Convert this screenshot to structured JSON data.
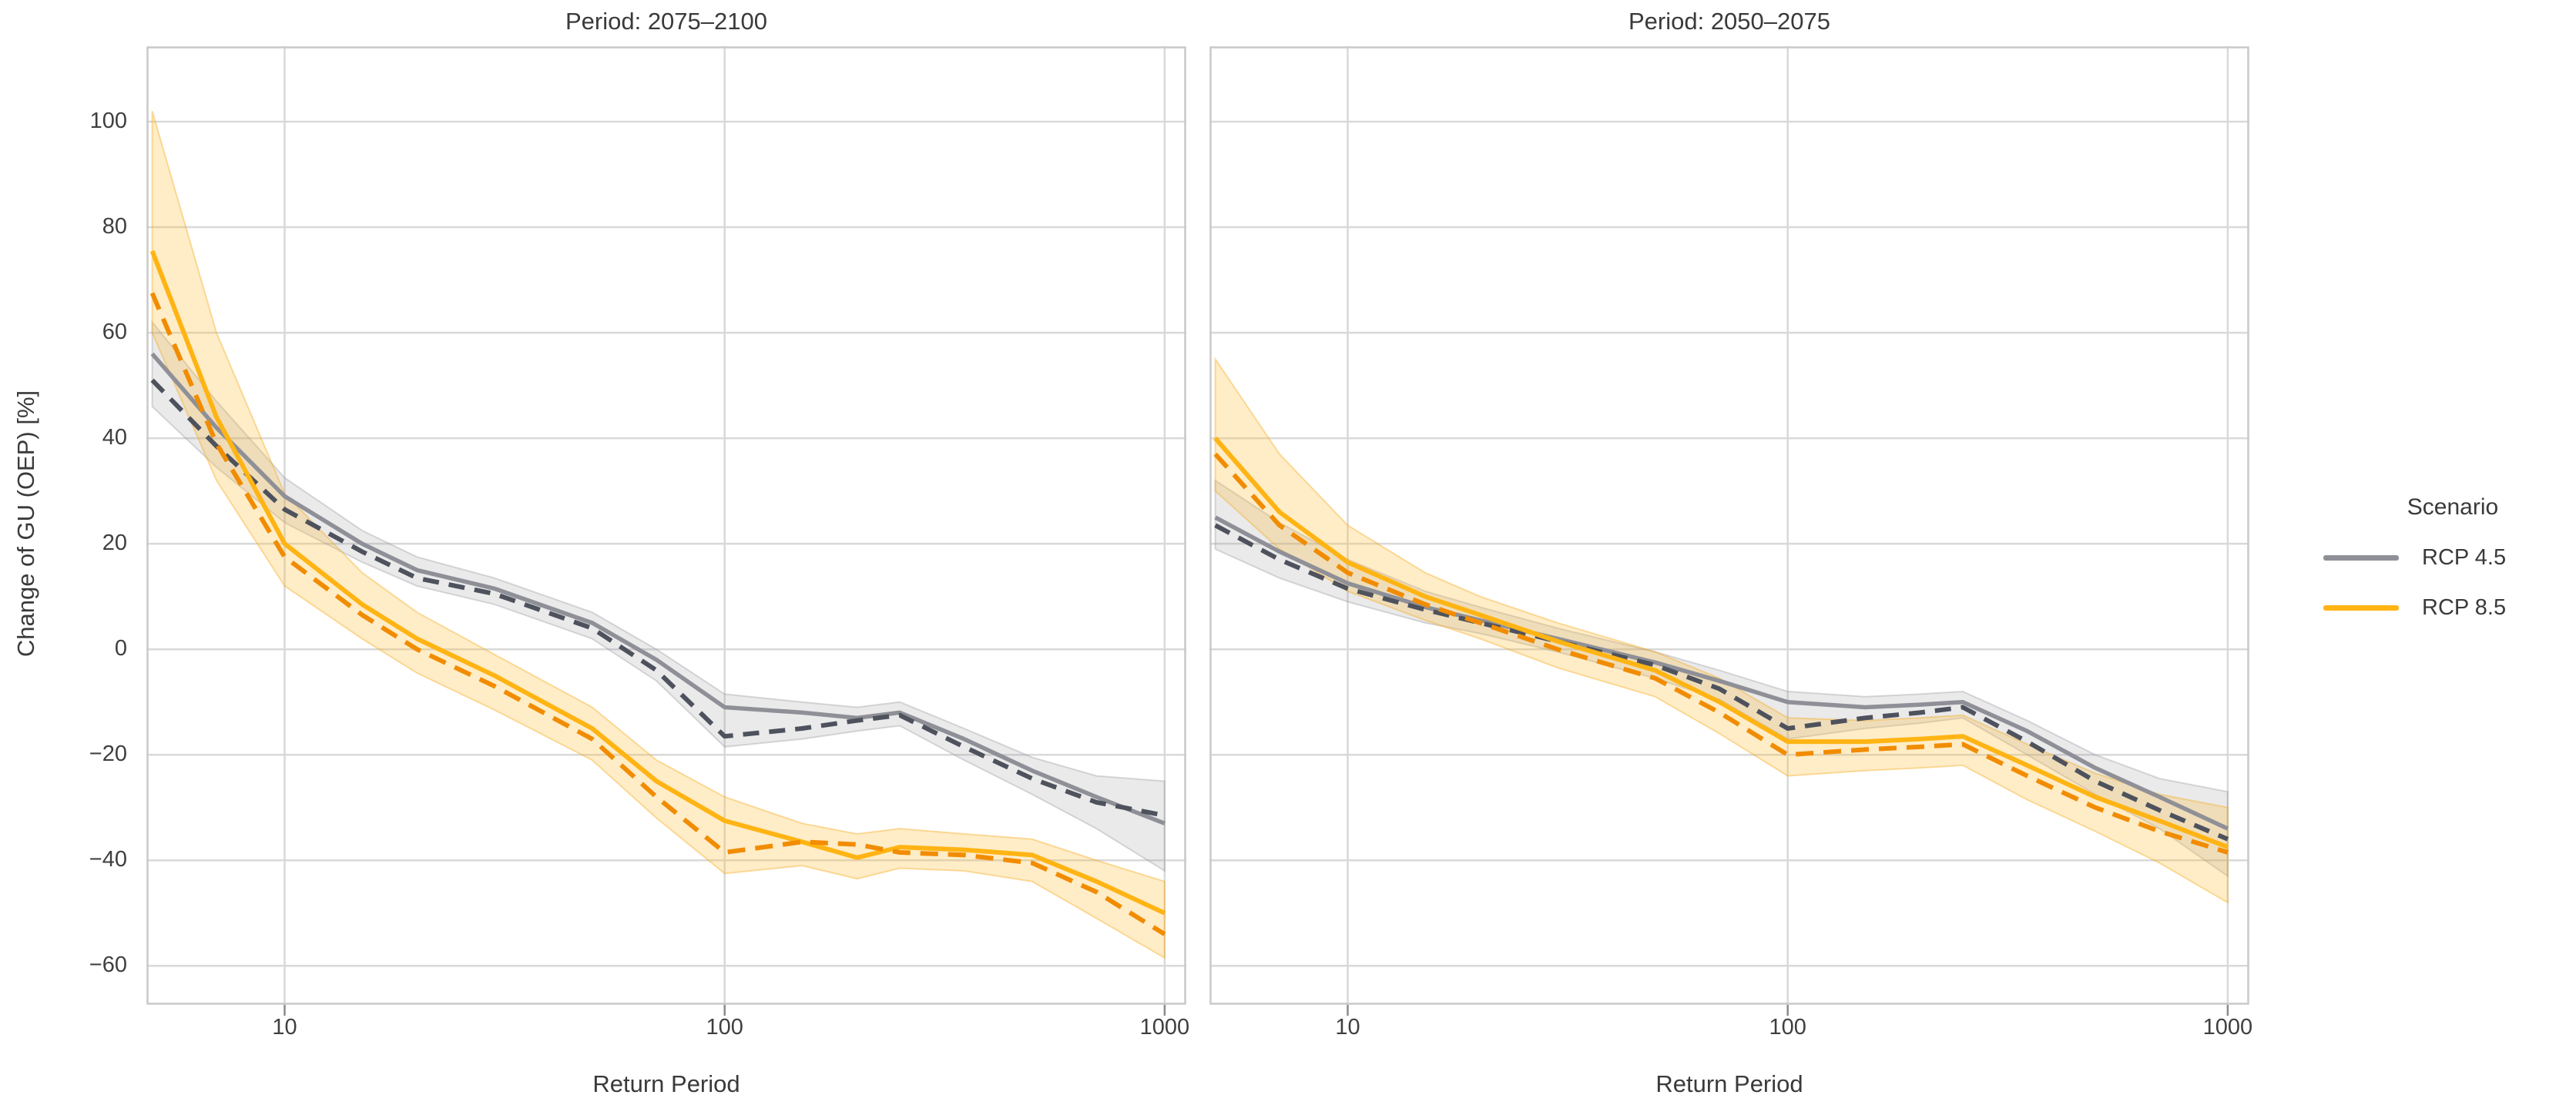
{
  "figure": {
    "panels": [
      {
        "title": "Period: 2075–2100"
      },
      {
        "title": "Period: 2050–2075"
      }
    ],
    "y_axis": {
      "label": "Change of GU (OEP) [%]",
      "ticks": [
        100,
        80,
        60,
        40,
        20,
        0,
        -20,
        -40,
        -60
      ]
    },
    "x_axis": {
      "label": "Return Period",
      "ticks": [
        10,
        100,
        1000
      ]
    },
    "legend": {
      "title": "Scenario",
      "items": [
        {
          "label": "RCP 4.5",
          "color": "#8F9097"
        },
        {
          "label": "RCP 8.5",
          "color": "#FFB414"
        }
      ]
    },
    "styles": {
      "rcp45_solid": {
        "color": "#8F9097",
        "dash": null,
        "width": 5.5
      },
      "rcp45_dashed": {
        "color": "#4E525D",
        "dash": "21 13",
        "width": 6
      },
      "rcp85_solid": {
        "color": "#FFB414",
        "dash": null,
        "width": 6
      },
      "rcp85_dashed": {
        "color": "#F18C00",
        "dash": "23 13",
        "width": 6
      },
      "rcp45_band": {
        "fill": "rgba(148,149,157,0.20)",
        "edge": "rgba(148,149,157,0.35)"
      },
      "rcp85_band": {
        "fill": "rgba(255,186,42,0.26)",
        "edge": "rgba(245,170,30,0.40)"
      },
      "gridline": "#D9D9D9",
      "panel_border": "#C9C9C9",
      "tick_mark": "#8A8A8A"
    }
  },
  "chart_data": [
    {
      "type": "line",
      "title": "Period: 2075–2100",
      "xlabel": "Return Period",
      "ylabel": "Change of GU (OEP) [%]",
      "x_scale": "log",
      "xlim": [
        4.85,
        1120
      ],
      "ylim": [
        -67.4,
        114.3
      ],
      "grid": true,
      "x": [
        5,
        7,
        10,
        15,
        20,
        30,
        50,
        70,
        100,
        150,
        200,
        250,
        350,
        500,
        700,
        1000
      ],
      "series": [
        {
          "key": "rcp45_solid",
          "name": "RCP 4.5 median",
          "values": [
            56,
            42,
            29,
            20,
            15,
            11.5,
            5,
            -2,
            -11,
            -12,
            -13,
            -12,
            -17,
            -23,
            -28,
            -33
          ]
        },
        {
          "key": "rcp45_dashed",
          "name": "RCP 4.5 (dashed)",
          "values": [
            51,
            38.5,
            26.5,
            18.5,
            13.5,
            10.5,
            4,
            -4,
            -16.5,
            -15,
            -13.5,
            -12.5,
            -18.5,
            -24.5,
            -29,
            -31.5
          ]
        },
        {
          "key": "rcp85_solid",
          "name": "RCP 8.5 median",
          "values": [
            75.5,
            44,
            20,
            8.5,
            2,
            -5,
            -15,
            -25,
            -32.5,
            -36.5,
            -39.5,
            -37.5,
            -38,
            -39,
            -44,
            -50
          ]
        },
        {
          "key": "rcp85_dashed",
          "name": "RCP 8.5 (dashed)",
          "values": [
            67.5,
            39,
            17.5,
            6.5,
            0,
            -7,
            -17,
            -28,
            -38.5,
            -36.5,
            -37,
            -38.5,
            -39,
            -40.5,
            -46,
            -54
          ]
        }
      ],
      "bands": [
        {
          "key": "rcp45_band",
          "name": "RCP 4.5 uncertainty band",
          "upper": [
            62,
            47,
            32.5,
            22.5,
            17.5,
            13.5,
            7,
            0,
            -8.5,
            -10,
            -11,
            -10,
            -15,
            -20.5,
            -24,
            -25
          ],
          "lower": [
            46,
            34.5,
            24,
            16.5,
            12,
            8.5,
            2,
            -6,
            -18.5,
            -17,
            -15.5,
            -14.5,
            -21,
            -27.5,
            -34,
            -42
          ]
        },
        {
          "key": "rcp85_band",
          "name": "RCP 8.5 uncertainty band",
          "upper": [
            102,
            60,
            29.5,
            14.5,
            7,
            -1,
            -11,
            -21,
            -28,
            -33,
            -35,
            -34,
            -35,
            -36,
            -40,
            -44
          ],
          "lower": [
            60,
            32,
            12,
            2,
            -4.5,
            -11.5,
            -21,
            -32,
            -42.5,
            -41,
            -43.5,
            -41.5,
            -42,
            -44,
            -51,
            -58.5
          ]
        }
      ]
    },
    {
      "type": "line",
      "title": "Period: 2050–2075",
      "xlabel": "Return Period",
      "ylabel": "Change of GU (OEP) [%]",
      "x_scale": "log",
      "xlim": [
        4.85,
        1120
      ],
      "ylim": [
        -67.4,
        114.3
      ],
      "grid": true,
      "x": [
        5,
        7,
        10,
        15,
        20,
        30,
        50,
        70,
        100,
        150,
        200,
        250,
        350,
        500,
        700,
        1000
      ],
      "series": [
        {
          "key": "rcp45_solid",
          "name": "RCP 4.5 median",
          "values": [
            25,
            18.5,
            12.5,
            8,
            5.5,
            2,
            -2.5,
            -6,
            -10,
            -11,
            -10.5,
            -10,
            -15.5,
            -22.5,
            -28,
            -34
          ]
        },
        {
          "key": "rcp45_dashed",
          "name": "RCP 4.5 (dashed)",
          "values": [
            23.5,
            17,
            11.5,
            7.5,
            5,
            1.5,
            -3,
            -7.5,
            -15,
            -13,
            -12,
            -11,
            -17.5,
            -25,
            -30.5,
            -36
          ]
        },
        {
          "key": "rcp85_solid",
          "name": "RCP 8.5 median",
          "values": [
            40,
            26,
            16.5,
            10,
            6.5,
            1.5,
            -4,
            -10,
            -17.5,
            -17.5,
            -17,
            -16.5,
            -22,
            -28,
            -32.5,
            -37.5
          ]
        },
        {
          "key": "rcp85_dashed",
          "name": "RCP 8.5 (dashed)",
          "values": [
            37,
            23.5,
            14.5,
            8.5,
            5,
            0,
            -5.5,
            -12,
            -20,
            -19,
            -18.5,
            -18,
            -24,
            -30,
            -34.5,
            -38.5
          ]
        }
      ],
      "bands": [
        {
          "key": "rcp45_band",
          "name": "RCP 4.5 uncertainty band",
          "upper": [
            32,
            24,
            17,
            11,
            8,
            4,
            -0.5,
            -4,
            -8,
            -9,
            -8.5,
            -8,
            -13.5,
            -20,
            -24.5,
            -27
          ],
          "lower": [
            19,
            13.5,
            9,
            5,
            3,
            -0.5,
            -5.5,
            -9.5,
            -17,
            -15,
            -14,
            -13,
            -20,
            -27.5,
            -34,
            -43
          ]
        },
        {
          "key": "rcp85_band",
          "name": "RCP 8.5 uncertainty band",
          "upper": [
            55,
            37,
            23.5,
            14.5,
            10,
            5,
            -0.5,
            -5.5,
            -13,
            -13.5,
            -13,
            -12.5,
            -18,
            -23.5,
            -27.5,
            -30
          ],
          "lower": [
            30,
            19,
            11,
            5.5,
            2,
            -3.5,
            -9,
            -16,
            -24,
            -23,
            -22.5,
            -22,
            -28.5,
            -34.5,
            -40.5,
            -48
          ]
        }
      ]
    }
  ]
}
